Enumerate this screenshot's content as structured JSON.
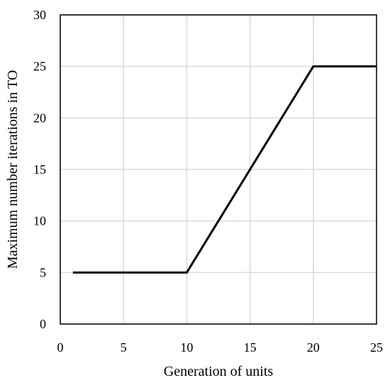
{
  "chart_data": {
    "type": "line",
    "title": "",
    "xlabel": "Generation of units",
    "ylabel": "Maximum number iterations in TO",
    "xlim": [
      0,
      25
    ],
    "ylim": [
      0,
      30
    ],
    "x_ticks": [
      0,
      5,
      10,
      15,
      20,
      25
    ],
    "y_ticks": [
      0,
      5,
      10,
      15,
      20,
      25,
      30
    ],
    "grid": true,
    "legend": "none",
    "series": [
      {
        "x": [
          1,
          10,
          20,
          25
        ],
        "y": [
          5,
          5,
          25,
          25
        ],
        "color": "#000000"
      }
    ]
  }
}
